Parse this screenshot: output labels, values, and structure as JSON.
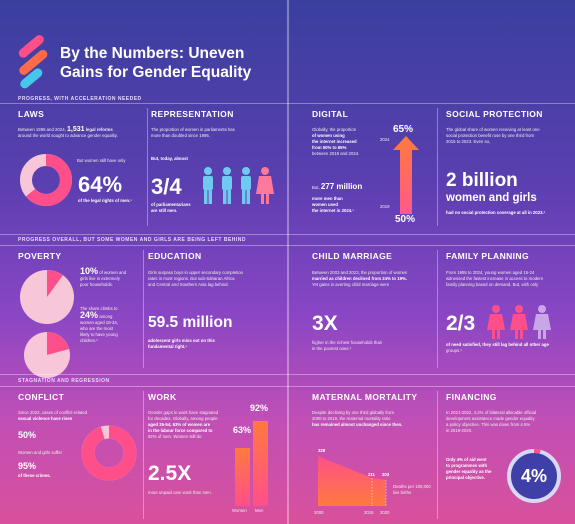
{
  "header": {
    "title_line1": "By the Numbers: Uneven",
    "title_line2": "Gains for Gender Equality"
  },
  "sections": {
    "s1": "PROGRESS, WITH ACCELERATION NEEDED",
    "s2": "PROGRESS OVERALL, BUT SOME WOMEN AND GIRLS ARE BEING LEFT BEHIND",
    "s3": "STAGNATION AND REGRESSION"
  },
  "laws": {
    "title": "LAWS",
    "line1": "Between 1995 and 2024,",
    "num": "1,531",
    "line1b": "legal reforms",
    "line2": "around the world sought to advance gender equality.",
    "but": "But women still have only",
    "pct": "64%",
    "pct_note": "of the legal rights of men.¹",
    "donut_value": 64
  },
  "representation": {
    "title": "REPRESENTATION",
    "l1": "The proportion of women in parliaments has",
    "l2": "more than doubled since 1995.",
    "but": "But, today, almost",
    "frac": "3/4",
    "n1": "of parliamentarians",
    "n2": "are still men."
  },
  "digital": {
    "title": "DIGITAL",
    "l1": "Globally, the proportion",
    "l2": "of women using",
    "l3": "the internet increased",
    "l4": "from 50% to 65%",
    "l5": "between 2019 and 2024.",
    "but": "But,",
    "num": "277 million",
    "n1": "more men than",
    "n2": "women used",
    "n3": "the internet in 2024.¹",
    "top": "65%",
    "bottom": "50%",
    "y_top": "2024",
    "y_bottom": "2019"
  },
  "social": {
    "title": "SOCIAL PROTECTION",
    "l1": "The global share of women receiving at least one",
    "l2": "social protection benefit rose by one third from",
    "l3": "2015 to 2023. Even so,",
    "big1": "2 billion",
    "big2": "women and girls",
    "note": "had no social protection coverage at all in 2023.¹"
  },
  "poverty": {
    "title": "POVERTY",
    "pct1": "10%",
    "p1a": "of women and",
    "p1b": "girls live in extremely",
    "p1c": "poor households.",
    "l1": "The share climbs to",
    "pct2": "24%",
    "p2a": "among",
    "p2b": "women aged 18-34,",
    "p2c": "who are the most",
    "p2d": "likely to have young",
    "p2e": "children.¹"
  },
  "education": {
    "title": "EDUCATION",
    "l1": "Girls surpass boys in upper secondary completion",
    "l2": "rates in most regions. But sub-Saharan Africa",
    "l3": "and Central and Southern Asia lag behind.",
    "big": "59.5 million",
    "n1": "adolescent girls miss out on this",
    "n2": "fundamental right.¹"
  },
  "child": {
    "title": "CHILD MARRIAGE",
    "l1": "Between 2003 and 2023, the proportion of women",
    "l2": "married as children declined from 24% to 19%.",
    "l3": "Yet gains in averting child marriage were",
    "big": "3X",
    "n1": "higher in the richest households than",
    "n2": "in the poorest ones.¹"
  },
  "family": {
    "title": "FAMILY PLANNING",
    "l1": "From 1995 to 2024, young women aged 15-24",
    "l2": "witnessed the fastest increase in access to modern",
    "l3": "family planning based on demand. But, with only",
    "frac": "2/3",
    "n1": "of need satisfied, they still lag behind all other age",
    "n2": "groups.¹"
  },
  "conflict": {
    "title": "CONFLICT",
    "l1": "Since 2022, cases of conflict-related",
    "l2": "sexual violence have risen",
    "pct1": "50%",
    "l3": "Women and girls suffer",
    "pct2": "95%",
    "l4": "of these crimes.",
    "donut_value": 95
  },
  "work": {
    "title": "WORK",
    "l1": "Gender gaps in work have stagnated",
    "l2": "for decades. Globally, among people",
    "l3": "aged 25-54, 63% of women are",
    "l4": "in the labour force compared to",
    "l5": "92% of men. Women still do",
    "big": "2.5X",
    "n1": "more unpaid care work than men.",
    "women_pct": "63%",
    "men_pct": "92%",
    "women_val": 63,
    "men_val": 92,
    "lab_w": "Women",
    "lab_m": "Men"
  },
  "maternal": {
    "title": "MATERNAL MORTALITY",
    "l1": "Despite declining by one third globally from",
    "l2": "2000 to 2015, the maternal mortality ratio",
    "l3": "has remained almost unchanged since then.",
    "v1": "328",
    "v2": "211",
    "v3": "203",
    "note1": "Deaths per 100,000",
    "note2": "live births",
    "x1": "2000",
    "x2": "2015",
    "x3": "2020"
  },
  "financing": {
    "title": "FINANCING",
    "l1": "In 2021-2022, 4.2% of bilateral allocable official",
    "l2": "development assistance made gender equality",
    "l3": "a policy objective. This was down from 4.5%",
    "l4": "in 2019-2020.",
    "n1": "Only 4% of aid went",
    "n2": "to programmes with",
    "n3": "gender equality as the",
    "n4": "principal objective.",
    "pct": "4%",
    "ring_value": 4
  },
  "colors": {
    "accent_pink": "#ff4f8b",
    "accent_orange": "#ff7a3d",
    "donut_light": "#f7c6d9",
    "people_blue": "#6fc9f0"
  }
}
